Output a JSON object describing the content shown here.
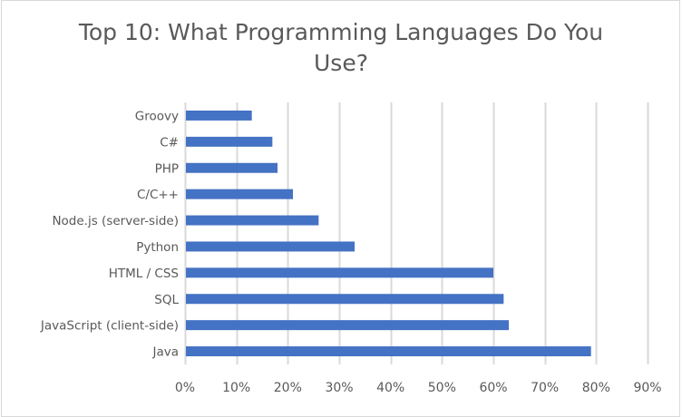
{
  "chart_data": {
    "type": "bar",
    "orientation": "horizontal",
    "title": "Top 10: What Programming Languages Do You Use?",
    "title_lines": [
      "Top 10: What Programming Languages Do You",
      "Use?"
    ],
    "xlabel": "",
    "ylabel": "",
    "categories": [
      "Java",
      "JavaScript (client-side)",
      "SQL",
      "HTML / CSS",
      "Python",
      "Node.js (server-side)",
      "C/C++",
      "PHP",
      "C#",
      "Groovy"
    ],
    "values": [
      0.79,
      0.63,
      0.62,
      0.6,
      0.33,
      0.26,
      0.21,
      0.18,
      0.17,
      0.13
    ],
    "xlim": [
      0,
      0.9
    ],
    "xticks": [
      0,
      0.1,
      0.2,
      0.3,
      0.4,
      0.5,
      0.6,
      0.7,
      0.8,
      0.9
    ],
    "xtick_labels": [
      "0%",
      "10%",
      "20%",
      "30%",
      "40%",
      "50%",
      "60%",
      "70%",
      "80%",
      "90%"
    ],
    "grid": true,
    "legend": "none",
    "colors": {
      "bar": "#4472C4",
      "grid": "#d9d9d9",
      "text": "#595959"
    }
  }
}
